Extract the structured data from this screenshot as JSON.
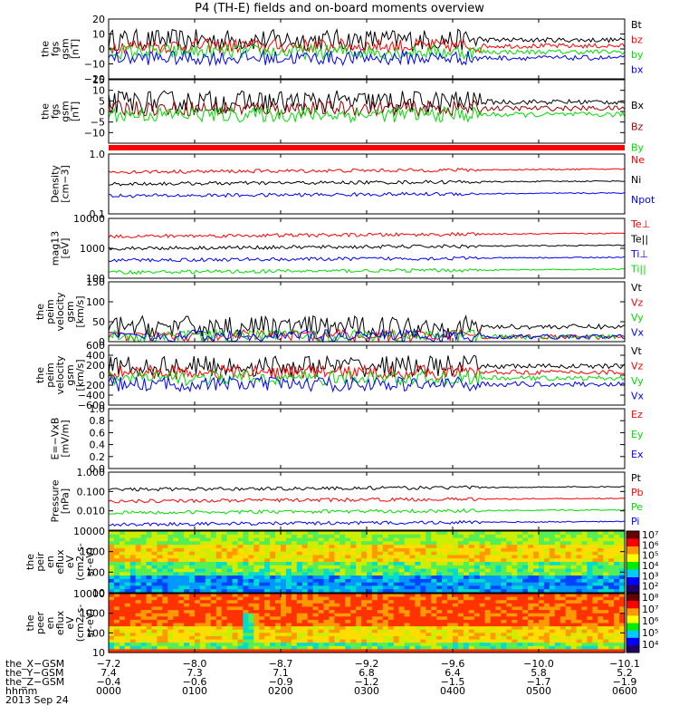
{
  "title": "P4 (TH-E) fields and on-board moments overview",
  "date": "2013 Sep 24",
  "colors": {
    "black": "#000000",
    "red": "#ff0000",
    "green": "#00dd00",
    "blue": "#0000ff",
    "darkred": "#990000"
  },
  "chart_data": [
    {
      "type": "line",
      "id": "fgs_gsm",
      "ylabel": [
        "the",
        "fgs",
        "gsm",
        "[nT]"
      ],
      "ylim": [
        -20,
        20
      ],
      "yticks": [
        "20",
        "10",
        "0",
        "−10",
        "−20"
      ],
      "tickvals": [
        20,
        10,
        0,
        -10,
        -20
      ],
      "series": [
        {
          "name": "Bt",
          "color": "black"
        },
        {
          "name": "bz",
          "color": "red"
        },
        {
          "name": "by",
          "color": "green"
        },
        {
          "name": "bx",
          "color": "blue"
        }
      ]
    },
    {
      "type": "line",
      "id": "fgs_sm",
      "ylabel": [
        "the",
        "fgs",
        "gsm",
        "[nT]"
      ],
      "ylim": [
        -15,
        15
      ],
      "yticks": [
        "15",
        "10",
        "5",
        "0",
        "−5",
        "−10"
      ],
      "tickvals": [
        15,
        10,
        5,
        0,
        -5,
        -10
      ],
      "series": [
        {
          "name": "Bx",
          "color": "black"
        },
        {
          "name": "Bz",
          "color": "darkred"
        },
        {
          "name": "By",
          "color": "green"
        }
      ]
    },
    {
      "type": "line",
      "id": "density",
      "ylabel": [
        "Density",
        "[cm−3]"
      ],
      "ylim": [
        0.1,
        1.0
      ],
      "log": true,
      "yticks": [
        "1.0",
        "0.1"
      ],
      "tickvals": [
        1.0,
        0.1
      ],
      "series": [
        {
          "name": "Ne",
          "color": "red"
        },
        {
          "name": "Ni",
          "color": "black"
        },
        {
          "name": "Npot",
          "color": "blue"
        }
      ]
    },
    {
      "type": "line",
      "id": "temp",
      "ylabel": [
        "mag13",
        "[eV]"
      ],
      "ylim": [
        100,
        10000
      ],
      "log": true,
      "yticks": [
        "10000",
        "1000",
        "100"
      ],
      "tickvals": [
        10000,
        1000,
        100
      ],
      "series": [
        {
          "name": "Te⊥",
          "color": "red"
        },
        {
          "name": "Te||",
          "color": "black"
        },
        {
          "name": "Ti⊥",
          "color": "blue"
        },
        {
          "name": "Ti||",
          "color": "green"
        }
      ]
    },
    {
      "type": "line",
      "id": "vel_mag",
      "ylabel": [
        "the",
        "peim",
        "velocity",
        "gsm",
        "[km/s]"
      ],
      "ylim": [
        0,
        150
      ],
      "yticks": [
        "150",
        "100",
        "50",
        "0"
      ],
      "tickvals": [
        150,
        100,
        50,
        0
      ],
      "series": [
        {
          "name": "Vt",
          "color": "black"
        },
        {
          "name": "Vz",
          "color": "red"
        },
        {
          "name": "Vy",
          "color": "green"
        },
        {
          "name": "Vx",
          "color": "blue"
        }
      ]
    },
    {
      "type": "line",
      "id": "vel_gsm",
      "ylabel": [
        "the",
        "peim",
        "velocity",
        "gsm",
        "[km/s]"
      ],
      "ylim": [
        -600,
        600
      ],
      "yticks": [
        "600",
        "400",
        "200",
        "0",
        "−200",
        "−400",
        "−600"
      ],
      "tickvals": [
        600,
        400,
        200,
        0,
        -200,
        -400,
        -600
      ],
      "series": [
        {
          "name": "Vt",
          "color": "black"
        },
        {
          "name": "Vz",
          "color": "red"
        },
        {
          "name": "Vy",
          "color": "green"
        },
        {
          "name": "Vx",
          "color": "blue"
        }
      ]
    },
    {
      "type": "line",
      "id": "efield",
      "ylabel": [
        "E=−VxB",
        "[mV/m]"
      ],
      "ylim": [
        0,
        1.0
      ],
      "yticks": [
        "1.0",
        "0.8",
        "0.6",
        "0.4",
        "0.2",
        "0.0"
      ],
      "tickvals": [
        1.0,
        0.8,
        0.6,
        0.4,
        0.2,
        0.0
      ],
      "series": [
        {
          "name": "Ez",
          "color": "red"
        },
        {
          "name": "Ey",
          "color": "green"
        },
        {
          "name": "Ex",
          "color": "blue"
        }
      ]
    },
    {
      "type": "line",
      "id": "pressure",
      "ylabel": [
        "Pressure",
        "[nPa]"
      ],
      "ylim": [
        0.001,
        1.0
      ],
      "log": true,
      "yticks": [
        "1.000",
        "0.100",
        "0.010"
      ],
      "tickvals": [
        1.0,
        0.1,
        0.01
      ],
      "series": [
        {
          "name": "Pt",
          "color": "black"
        },
        {
          "name": "Pb",
          "color": "red"
        },
        {
          "name": "Pe",
          "color": "green"
        },
        {
          "name": "Pi",
          "color": "blue"
        }
      ]
    },
    {
      "type": "heatmap",
      "id": "peir",
      "ylabel": [
        "the",
        "peir",
        "en",
        "eflux",
        "eV",
        "(cm2-s-",
        "sr-eV)"
      ],
      "ylim": [
        10,
        10000
      ],
      "log": true,
      "yticks": [
        "10000",
        "1000",
        "100",
        "10"
      ],
      "tickvals": [
        10000,
        1000,
        100,
        10
      ],
      "colorbar": {
        "labels": [
          "10⁷",
          "10⁶",
          "10⁵",
          "10⁴",
          "10³",
          "10²"
        ]
      }
    },
    {
      "type": "heatmap",
      "id": "peer",
      "ylabel": [
        "the",
        "peer",
        "en",
        "eflux",
        "eV",
        "(cm2-s-",
        "sr-eV)"
      ],
      "ylim": [
        10,
        10000
      ],
      "log": true,
      "yticks": [
        "10000",
        "1000",
        "100",
        "10"
      ],
      "tickvals": [
        10000,
        1000,
        100,
        10
      ],
      "colorbar": {
        "labels": [
          "10⁸",
          "10⁷",
          "10⁶",
          "10⁵",
          "10⁴"
        ]
      }
    }
  ],
  "xaxis": {
    "rows": [
      {
        "label": "the_X−GSM",
        "values": [
          "−7.2",
          "−8.0",
          "−8.7",
          "−9.2",
          "−9.6",
          "−10.0",
          "−10.1"
        ]
      },
      {
        "label": "the_Y−GSM",
        "values": [
          "7.4",
          "7.3",
          "7.1",
          "6.8",
          "6.4",
          "5.8",
          "5.2"
        ]
      },
      {
        "label": "the_Z−GSM",
        "values": [
          "−0.4",
          "−0.6",
          "−0.9",
          "−1.2",
          "−1.5",
          "−1.7",
          "−1.9"
        ]
      },
      {
        "label": "hhmm",
        "values": [
          "0000",
          "0100",
          "0200",
          "0300",
          "0400",
          "0500",
          "0600"
        ]
      }
    ]
  }
}
